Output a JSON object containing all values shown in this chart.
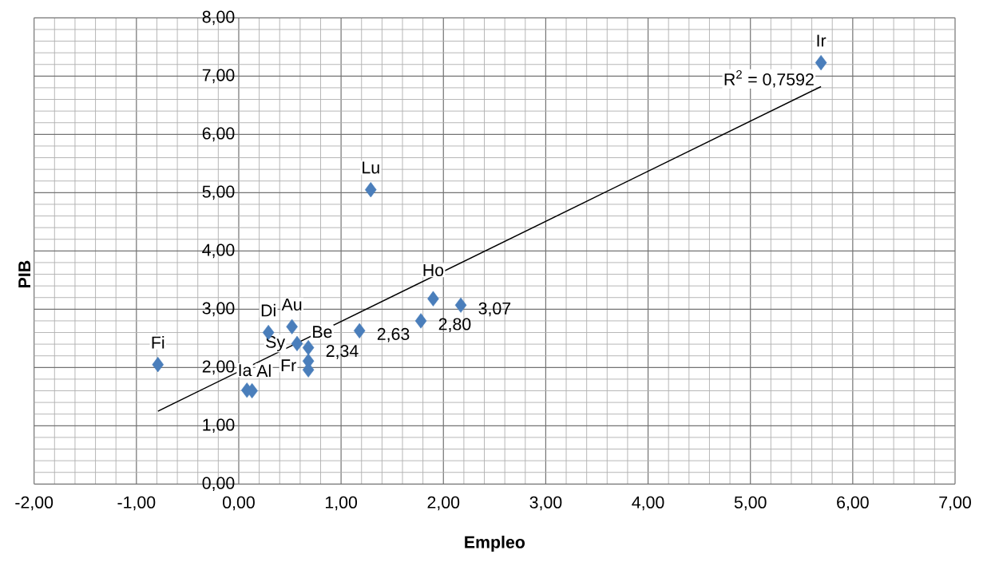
{
  "chart_data": {
    "type": "scatter",
    "xlabel": "Empleo",
    "ylabel": "PIB",
    "xlim": [
      -2,
      7
    ],
    "ylim": [
      0,
      8
    ],
    "xticks": [
      {
        "value": -2,
        "label": "-2,00"
      },
      {
        "value": -1,
        "label": "-1,00"
      },
      {
        "value": 0,
        "label": "0,00"
      },
      {
        "value": 1,
        "label": "1,00"
      },
      {
        "value": 2,
        "label": "2,00"
      },
      {
        "value": 3,
        "label": "3,00"
      },
      {
        "value": 4,
        "label": "4,00"
      },
      {
        "value": 5,
        "label": "5,00"
      },
      {
        "value": 6,
        "label": "6,00"
      },
      {
        "value": 7,
        "label": "7,00"
      }
    ],
    "yticks": [
      {
        "value": 0,
        "label": "0,00"
      },
      {
        "value": 1,
        "label": "1,00"
      },
      {
        "value": 2,
        "label": "2,00"
      },
      {
        "value": 3,
        "label": "3,00"
      },
      {
        "value": 4,
        "label": "4,00"
      },
      {
        "value": 5,
        "label": "5,00"
      },
      {
        "value": 6,
        "label": "6,00"
      },
      {
        "value": 7,
        "label": "7,00"
      },
      {
        "value": 8,
        "label": "8,00"
      }
    ],
    "grid": true,
    "marker": "diamond",
    "series": [
      {
        "color": "#4a7ebb",
        "x": [
          -0.79,
          0.08,
          0.13,
          0.29,
          0.52,
          0.57,
          0.68,
          0.68,
          0.68,
          1.18,
          1.29,
          1.78,
          1.9,
          2.17,
          5.69
        ],
        "values": [
          2.05,
          1.61,
          1.6,
          2.6,
          2.7,
          2.41,
          2.34,
          2.11,
          1.96,
          2.63,
          5.05,
          2.8,
          3.18,
          3.07,
          7.23
        ],
        "value_labels": [
          null,
          null,
          null,
          null,
          null,
          null,
          "2,34",
          null,
          null,
          "2,63",
          null,
          "2,80",
          null,
          "3,07",
          null
        ]
      },
      {
        "type": "line",
        "marker": "none",
        "color": "#000000",
        "x": [
          -0.79,
          5.69
        ],
        "values": [
          1.25,
          6.82
        ]
      }
    ],
    "annotations": [
      {
        "text": "Fi",
        "x": -0.79,
        "y": 2.05
      },
      {
        "text": "Ia",
        "x": 0.08,
        "y": 1.61
      },
      {
        "text": "Al",
        "x": 0.13,
        "y": 1.6
      },
      {
        "text": "Di",
        "x": 0.29,
        "y": 2.6
      },
      {
        "text": "Au",
        "x": 0.52,
        "y": 2.7
      },
      {
        "text": "Be",
        "x": 0.68,
        "y": 2.34
      },
      {
        "text": "Sy",
        "x": 0.57,
        "y": 2.41
      },
      {
        "text": "Fr",
        "x": 0.68,
        "y": 2.11
      },
      {
        "text": "Lu",
        "x": 1.29,
        "y": 5.05
      },
      {
        "text": "Ho",
        "x": 1.9,
        "y": 3.18
      },
      {
        "text": "Ir",
        "x": 5.69,
        "y": 7.23
      },
      {
        "text": "R$^{2}$ = 0,7592",
        "x": 5.69,
        "y": 6.82
      }
    ]
  }
}
